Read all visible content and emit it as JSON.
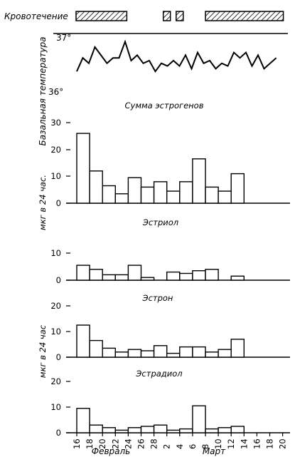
{
  "chart_data": {
    "type": "bar",
    "x_tick_labels": [
      "16",
      "18",
      "20",
      "22",
      "24",
      "26",
      "28",
      "2",
      "4",
      "6",
      "8",
      "10",
      "12",
      "14",
      "16",
      "18",
      "20"
    ],
    "month_labels": [
      "Февраль",
      "Март"
    ],
    "bleeding": {
      "label": "Кровотечение",
      "periods": [
        [
          0,
          4
        ],
        [
          7,
          7
        ],
        [
          8,
          8
        ],
        [
          10,
          16
        ]
      ]
    },
    "temperature": {
      "ylabel": "Базальная температура",
      "ytick_labels": [
        "37°",
        "36°"
      ],
      "ylim": [
        36.0,
        37.0
      ],
      "values": [
        36.3,
        36.55,
        36.45,
        36.75,
        36.6,
        36.45,
        36.55,
        36.55,
        36.85,
        36.5,
        36.6,
        36.45,
        36.5,
        36.3,
        36.45,
        36.4,
        36.5,
        36.4,
        36.6,
        36.35,
        36.65,
        36.45,
        36.5,
        36.35,
        36.45,
        36.4,
        36.65,
        36.55,
        36.65,
        36.4,
        36.6,
        36.35,
        36.45,
        36.55
      ]
    },
    "left_axis_labels": [
      "мкг в 24 час.",
      "мкг в 24 час"
    ],
    "panels": [
      {
        "title": "Сумма эстрогенов",
        "ytick_labels": [
          "30",
          "20",
          "10",
          "0"
        ],
        "ylim": [
          0,
          30
        ],
        "values": [
          26,
          12,
          6.5,
          3.5,
          9.5,
          6,
          8,
          4.5,
          8,
          16.5,
          6,
          4.5,
          11
        ]
      },
      {
        "title": "Эстриол",
        "ytick_labels": [
          "10",
          "0"
        ],
        "ylim": [
          0,
          10
        ],
        "values": [
          5.5,
          4,
          2,
          2,
          5.5,
          1,
          0,
          3,
          2.5,
          3.5,
          4,
          0,
          1.5
        ]
      },
      {
        "title": "Эстрон",
        "ytick_labels": [
          "20",
          "10",
          "0"
        ],
        "ylim": [
          0,
          20
        ],
        "values": [
          12.5,
          6.5,
          3.5,
          2,
          3,
          2.5,
          4.5,
          1.5,
          4,
          4,
          2,
          3,
          7
        ]
      },
      {
        "title": "Эстрадиол",
        "ytick_labels": [
          "20",
          "10",
          "0"
        ],
        "ylim": [
          0,
          20
        ],
        "values": [
          9.5,
          3,
          2,
          1,
          2,
          2.5,
          3,
          1,
          1.5,
          10.5,
          1.5,
          2,
          2.5
        ]
      }
    ]
  }
}
